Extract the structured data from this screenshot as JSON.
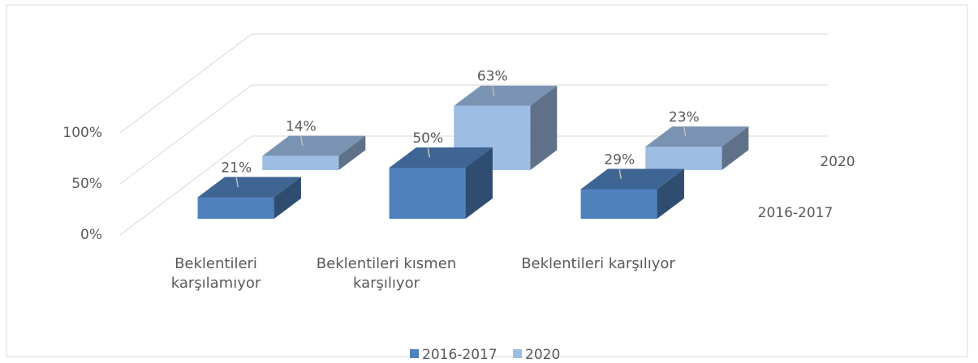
{
  "chart_data": {
    "type": "bar3d",
    "categories": [
      "Beklentileri karşılamıyor",
      "Beklentileri kısmen karşılıyor",
      "Beklentileri karşılıyor"
    ],
    "series": [
      {
        "name": "2016-2017",
        "color": "#4f81bd",
        "values": [
          21,
          50,
          29
        ],
        "value_labels": [
          "21%",
          "50%",
          "29%"
        ]
      },
      {
        "name": "2020",
        "color": "#9dbde4",
        "values": [
          14,
          63,
          23
        ],
        "value_labels": [
          "14%",
          "63%",
          "23%"
        ]
      }
    ],
    "ylim": [
      0,
      100
    ],
    "yticks": [
      {
        "value": 0,
        "label": "0%"
      },
      {
        "value": 50,
        "label": "50%"
      },
      {
        "value": 100,
        "label": "100%"
      }
    ],
    "grid": true,
    "legend": "bottom"
  }
}
